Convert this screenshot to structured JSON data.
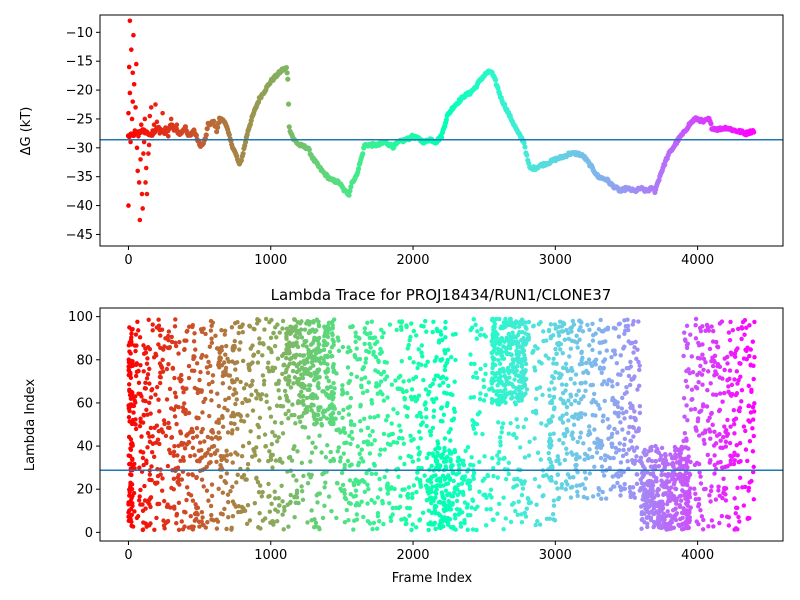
{
  "chart_data": [
    {
      "type": "scatter",
      "title": "",
      "xlabel": "",
      "ylabel": "ΔG (kT)",
      "xlim": [
        -200,
        4600
      ],
      "ylim": [
        -47,
        -7
      ],
      "xticks": [
        0,
        1000,
        2000,
        3000,
        4000
      ],
      "yticks": [
        -45,
        -40,
        -35,
        -30,
        -25,
        -20,
        -15,
        -10
      ],
      "hline": -28.6,
      "hline_color": "#1f77b4",
      "colormap": "rainbow (red at frame 0 → violet at frame 4400)",
      "series": [
        {
          "trace_x": [
            0,
            60,
            100,
            140,
            160,
            200,
            260,
            300,
            360,
            400,
            420,
            460,
            500,
            520,
            540,
            560,
            600,
            620,
            640,
            680,
            720,
            760,
            780,
            800,
            840,
            880,
            920,
            960,
            1000,
            1040,
            1080,
            1110,
            1120,
            1130,
            1160,
            1200,
            1260,
            1300,
            1360,
            1420,
            1480,
            1520,
            1550,
            1570,
            1600,
            1640,
            1660,
            1700,
            1760,
            1800,
            1860,
            1900,
            1960,
            2000,
            2040,
            2080,
            2120,
            2160,
            2200,
            2240,
            2280,
            2320,
            2360,
            2400,
            2440,
            2480,
            2520,
            2550,
            2580,
            2620,
            2660,
            2700,
            2740,
            2780,
            2800,
            2820,
            2860,
            2900,
            2960,
            3000,
            3060,
            3100,
            3160,
            3200,
            3260,
            3300,
            3360,
            3400,
            3460,
            3500,
            3560,
            3600,
            3640,
            3680,
            3700,
            3740,
            3780,
            3800,
            3840,
            3880,
            3900,
            3940,
            3980,
            4000,
            4040,
            4080,
            4100,
            4140,
            4200,
            4260,
            4300,
            4340,
            4400
          ],
          "trace_y": [
            -28.0,
            -27.5,
            -27.0,
            -27.5,
            -28.0,
            -26.5,
            -27.5,
            -26.0,
            -27.5,
            -26.5,
            -28.0,
            -27.0,
            -29.5,
            -29.5,
            -28.5,
            -26.0,
            -25.5,
            -27.0,
            -25.0,
            -25.5,
            -29.0,
            -31.5,
            -33.0,
            -31.5,
            -27.0,
            -24.0,
            -21.5,
            -20.0,
            -18.5,
            -17.5,
            -16.5,
            -16.2,
            -18.0,
            -26.5,
            -28.5,
            -29.5,
            -30.0,
            -32.0,
            -34.0,
            -35.5,
            -36.0,
            -37.5,
            -38.0,
            -36.0,
            -35.0,
            -31.5,
            -29.5,
            -29.5,
            -29.5,
            -29.0,
            -29.8,
            -29.0,
            -28.5,
            -28.0,
            -28.5,
            -29.0,
            -28.5,
            -29.0,
            -28.0,
            -24.5,
            -23.0,
            -22.0,
            -21.0,
            -20.5,
            -19.5,
            -18.0,
            -17.0,
            -16.8,
            -18.5,
            -21.5,
            -23.5,
            -25.5,
            -27.5,
            -29.0,
            -31.5,
            -33.5,
            -33.5,
            -33.0,
            -32.5,
            -32.0,
            -31.5,
            -31.0,
            -31.0,
            -31.5,
            -33.5,
            -35.0,
            -35.5,
            -36.5,
            -37.5,
            -37.0,
            -37.5,
            -37.0,
            -37.5,
            -37.0,
            -37.5,
            -34.5,
            -32.0,
            -31.0,
            -29.5,
            -28.0,
            -27.5,
            -26.0,
            -25.0,
            -25.0,
            -25.5,
            -25.0,
            -26.5,
            -26.8,
            -26.5,
            -27.0,
            -27.2,
            -27.5,
            -27.0
          ],
          "scatter_x": [
            0,
            0,
            5,
            10,
            10,
            15,
            20,
            25,
            30,
            30,
            35,
            40,
            45,
            50,
            55,
            60,
            65,
            70,
            75,
            80,
            85,
            90,
            95,
            100,
            105,
            110,
            115,
            120,
            125,
            130,
            135,
            140,
            145,
            150,
            160,
            170,
            180,
            190,
            200,
            220,
            240,
            260,
            280,
            300,
            320,
            340,
            360
          ],
          "scatter_y": [
            -40,
            -24,
            -16,
            -8,
            -20.5,
            -29,
            -13,
            -25,
            -17,
            -22,
            -10.5,
            -19,
            -27,
            -23,
            -15.5,
            -30,
            -34,
            -28,
            -36,
            -42.5,
            -32,
            -26,
            -38,
            -40.5,
            -31,
            -29,
            -25,
            -36,
            -33.5,
            -38,
            -27.5,
            -31,
            -29.5,
            -24.5,
            -23,
            -27,
            -26,
            -22.5,
            -25.5,
            -27.5,
            -24,
            -26.5,
            -28,
            -25,
            -27,
            -26,
            -27.5
          ]
        }
      ]
    },
    {
      "type": "scatter",
      "title": "Lambda Trace for PROJ18434/RUN1/CLONE37",
      "xlabel": "Frame Index",
      "ylabel": "Lambda Index",
      "xlim": [
        -200,
        4600
      ],
      "ylim": [
        -4,
        104
      ],
      "xticks": [
        0,
        1000,
        2000,
        3000,
        4000
      ],
      "yticks": [
        0,
        20,
        40,
        60,
        80,
        100
      ],
      "hline": 28.8,
      "hline_color": "#1f77b4",
      "colormap": "rainbow (red at frame 0 → violet at frame 4400)",
      "frames": 4400,
      "clusters": [
        {
          "x_range": [
            0,
            30
          ],
          "y_range": [
            3,
            98
          ],
          "weight": 0.6
        },
        {
          "x_range": [
            30,
            700
          ],
          "y_range": [
            1,
            99
          ],
          "weight": 3
        },
        {
          "x_range": [
            700,
            1100
          ],
          "y_range": [
            1,
            99
          ],
          "weight": 1.5
        },
        {
          "x_range": [
            1100,
            1450
          ],
          "y_range": [
            50,
            99
          ],
          "weight": 1.6
        },
        {
          "x_range": [
            1100,
            1500
          ],
          "y_range": [
            1,
            99
          ],
          "weight": 1
        },
        {
          "x_range": [
            1500,
            2300
          ],
          "y_range": [
            1,
            98
          ],
          "weight": 3
        },
        {
          "x_range": [
            2100,
            2400
          ],
          "y_range": [
            1,
            40
          ],
          "weight": 1
        },
        {
          "x_range": [
            2550,
            2800
          ],
          "y_range": [
            60,
            99
          ],
          "weight": 1.6
        },
        {
          "x_range": [
            2400,
            3000
          ],
          "y_range": [
            1,
            99
          ],
          "weight": 1.6
        },
        {
          "x_range": [
            2950,
            3600
          ],
          "y_range": [
            15,
            99
          ],
          "weight": 2.8
        },
        {
          "x_range": [
            3600,
            3950
          ],
          "y_range": [
            1,
            40
          ],
          "weight": 2.4
        },
        {
          "x_range": [
            3900,
            4400
          ],
          "y_range": [
            1,
            99
          ],
          "weight": 2
        }
      ]
    }
  ]
}
